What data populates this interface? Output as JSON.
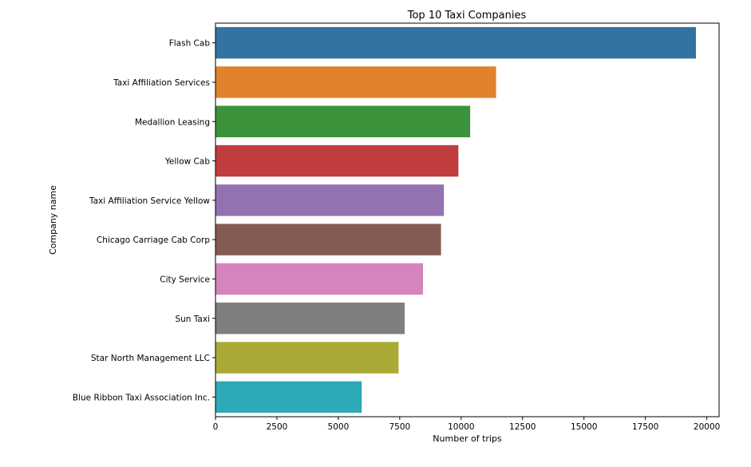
{
  "chart_data": {
    "type": "bar",
    "orientation": "horizontal",
    "title": "Top 10 Taxi Companies",
    "xlabel": "Number of trips",
    "ylabel": "Company name",
    "categories": [
      "Flash Cab",
      "Taxi Affiliation Services",
      "Medallion Leasing",
      "Yellow Cab",
      "Taxi Affiliation Service Yellow",
      "Chicago Carriage Cab Corp",
      "City Service",
      "Sun Taxi",
      "Star North Management LLC",
      "Blue Ribbon Taxi Association Inc."
    ],
    "values": [
      19558,
      11422,
      10367,
      9888,
      9299,
      9181,
      8448,
      7701,
      7455,
      5953
    ],
    "colors": [
      "#3274a1",
      "#e1812c",
      "#3a923a",
      "#c03d3e",
      "#9372b2",
      "#845b53",
      "#d684bd",
      "#7f7f7f",
      "#a9aa35",
      "#2ea9b8"
    ],
    "xlim": [
      0,
      20500
    ],
    "xticks": [
      0,
      2500,
      5000,
      7500,
      10000,
      12500,
      15000,
      17500,
      20000
    ],
    "xtick_labels": [
      "0",
      "2500",
      "5000",
      "7500",
      "10000",
      "12500",
      "15000",
      "17500",
      "20000"
    ],
    "grid": false,
    "legend": "none"
  }
}
